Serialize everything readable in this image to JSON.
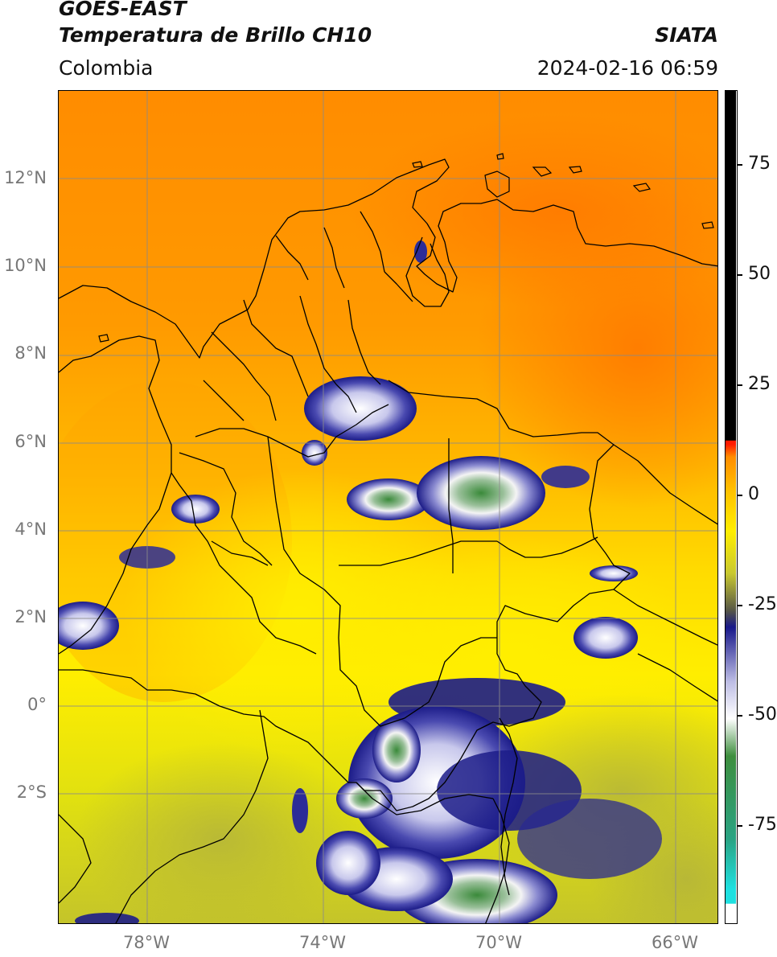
{
  "header": {
    "satellite": "GOES-EAST",
    "product": "Temperatura de Brillo CH10",
    "organization": "SIATA",
    "region": "Colombia",
    "datetime": "2024-02-16 06:59"
  },
  "map": {
    "lat_labels": [
      "12°N",
      "10°N",
      "8°N",
      "6°N",
      "4°N",
      "2°N",
      "0°",
      "2°S"
    ],
    "lon_labels": [
      "78°W",
      "74°W",
      "70°W",
      "66°W"
    ],
    "colors": {
      "warm_orange": "#ff8c00",
      "orange": "#ffa200",
      "yellow": "#ffee00",
      "olive": "#c9c930",
      "navy": "#1c1c88",
      "white": "#f4f4f4",
      "green": "#3a8a3a",
      "grid": "#8a8a8a",
      "borders": "#000000"
    }
  },
  "colorbar": {
    "tick_labels": [
      "75",
      "50",
      "25",
      "0",
      "-25",
      "-50",
      "-75"
    ],
    "colors": [
      "#ffffff",
      "#1fe0e0",
      "#2aa383",
      "#3e8e3e",
      "#ffffff",
      "#bcbce4",
      "#18188a",
      "#565646",
      "#c9c930",
      "#ffee00",
      "#ff8c00",
      "#ff1a00",
      "#000000"
    ]
  }
}
